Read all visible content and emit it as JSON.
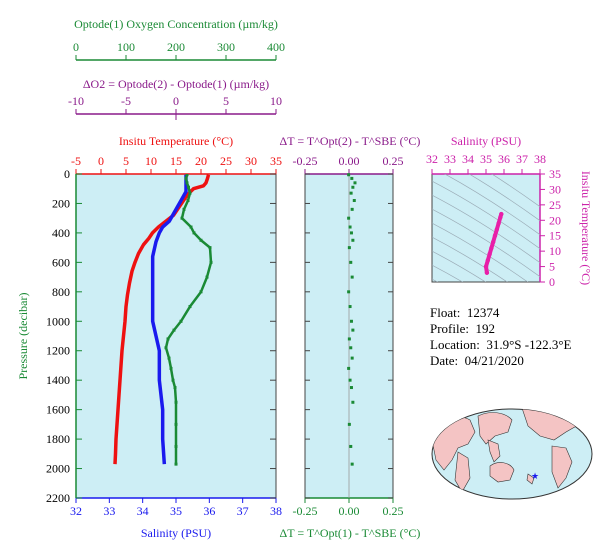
{
  "colors": {
    "oxygen": "#1a8a35",
    "delta_o2": "#8a1a8a",
    "temperature": "#ee1111",
    "salinity": "#1a1aee",
    "salinity_axis": "#cc22aa",
    "plot_bg": "#cdeef5",
    "pressure_axis": "#1a8a35"
  },
  "info": {
    "float_label": "Float:",
    "float_value": "12374",
    "profile_label": "Profile:",
    "profile_value": "192",
    "location_label": "Location:",
    "location_value": "31.9°S  -122.3°E",
    "date_label": "Date:",
    "date_value": "04/21/2020"
  },
  "map": {
    "icon": "world-map-icon",
    "marker_icon": "star-icon"
  },
  "chart_data": [
    {
      "type": "line",
      "name_key": "main_profile",
      "title_oxygen": "Optode(1) Oxygen Concentration (µm/kg)",
      "title_delta_o2": "ΔO2 = Optode(2) - Optode(1)   (µm/kg)",
      "title_temperature": "Insitu Temperature (°C)",
      "xlabel_salinity": "Salinity (PSU)",
      "ylabel": "Pressure (decibar)",
      "ylim": [
        0,
        2200
      ],
      "yticks": [
        0,
        200,
        400,
        600,
        800,
        1000,
        1200,
        1400,
        1600,
        1800,
        2000,
        2200
      ],
      "axes": {
        "oxygen": {
          "lim": [
            0,
            400
          ],
          "ticks": [
            0,
            100,
            200,
            300,
            400
          ]
        },
        "delta_o2": {
          "lim": [
            -10,
            10
          ],
          "ticks": [
            -10,
            -5,
            0,
            5,
            10
          ]
        },
        "temperature": {
          "lim": [
            -5,
            35
          ],
          "ticks": [
            -5,
            0,
            5,
            10,
            15,
            20,
            25,
            30,
            35
          ]
        },
        "salinity": {
          "lim": [
            32,
            38
          ],
          "ticks": [
            32,
            33,
            34,
            35,
            36,
            37,
            38
          ]
        }
      },
      "series": [
        {
          "name": "Temperature",
          "axis": "temperature",
          "points": [
            [
              21.5,
              5
            ],
            [
              21.3,
              30
            ],
            [
              21.0,
              60
            ],
            [
              20.5,
              80
            ],
            [
              18.5,
              100
            ],
            [
              17.3,
              140
            ],
            [
              16.5,
              180
            ],
            [
              15.5,
              230
            ],
            [
              14.5,
              280
            ],
            [
              13.0,
              320
            ],
            [
              11.5,
              360
            ],
            [
              10.3,
              400
            ],
            [
              9.5,
              440
            ],
            [
              8.5,
              480
            ],
            [
              7.5,
              540
            ],
            [
              6.8,
              600
            ],
            [
              6.2,
              660
            ],
            [
              5.7,
              740
            ],
            [
              5.3,
              820
            ],
            [
              5.0,
              900
            ],
            [
              4.8,
              1000
            ],
            [
              4.5,
              1100
            ],
            [
              4.2,
              1200
            ],
            [
              4.0,
              1300
            ],
            [
              3.8,
              1400
            ],
            [
              3.6,
              1500
            ],
            [
              3.4,
              1600
            ],
            [
              3.2,
              1700
            ],
            [
              3.0,
              1800
            ],
            [
              2.9,
              1900
            ],
            [
              2.8,
              1970
            ]
          ]
        },
        {
          "name": "Salinity",
          "axis": "salinity",
          "points": [
            [
              35.3,
              5
            ],
            [
              35.3,
              40
            ],
            [
              35.3,
              80
            ],
            [
              35.3,
              120
            ],
            [
              35.2,
              160
            ],
            [
              35.1,
              200
            ],
            [
              35.0,
              240
            ],
            [
              34.9,
              280
            ],
            [
              34.8,
              320
            ],
            [
              34.6,
              360
            ],
            [
              34.5,
              400
            ],
            [
              34.4,
              460
            ],
            [
              34.3,
              560
            ],
            [
              34.3,
              700
            ],
            [
              34.3,
              850
            ],
            [
              34.3,
              1000
            ],
            [
              34.4,
              1100
            ],
            [
              34.5,
              1200
            ],
            [
              34.5,
              1300
            ],
            [
              34.5,
              1400
            ],
            [
              34.6,
              1600
            ],
            [
              34.6,
              1800
            ],
            [
              34.65,
              1970
            ]
          ]
        },
        {
          "name": "Oxygen",
          "axis": "oxygen",
          "points": [
            [
              222,
              5
            ],
            [
              220,
              30
            ],
            [
              222,
              60
            ],
            [
              225,
              90
            ],
            [
              228,
              130
            ],
            [
              224,
              180
            ],
            [
              216,
              240
            ],
            [
              212,
              300
            ],
            [
              230,
              360
            ],
            [
              236,
              400
            ],
            [
              250,
              450
            ],
            [
              268,
              500
            ],
            [
              270,
              600
            ],
            [
              262,
              700
            ],
            [
              250,
              800
            ],
            [
              228,
              900
            ],
            [
              210,
              1000
            ],
            [
              196,
              1060
            ],
            [
              184,
              1120
            ],
            [
              180,
              1180
            ],
            [
              186,
              1250
            ],
            [
              190,
              1320
            ],
            [
              194,
              1400
            ],
            [
              198,
              1450
            ],
            [
              200,
              1550
            ],
            [
              200,
              1700
            ],
            [
              200,
              1850
            ],
            [
              200,
              1970
            ]
          ]
        }
      ]
    },
    {
      "type": "scatter",
      "title": "ΔT = T^Opt(2) - T^SBE (°C)",
      "xlabel": "ΔT = T^Opt(1) - T^SBE (°C)",
      "xlim": [
        -0.25,
        0.25
      ],
      "xticks": [
        "-0.25",
        "0.00",
        "0.25"
      ],
      "ylim": [
        0,
        2200
      ]
    },
    {
      "type": "line",
      "title": "Salinity (PSU)",
      "ylabel": "Insitu Temperature (°C)",
      "xlim": [
        32,
        38
      ],
      "ylim": [
        0,
        35
      ],
      "xticks": [
        32,
        33,
        34,
        35,
        36,
        37,
        38
      ],
      "yticks": [
        0,
        5,
        10,
        15,
        20,
        25,
        30,
        35
      ],
      "series": [
        {
          "name": "T-S",
          "points": [
            [
              35.05,
              3
            ],
            [
              35.0,
              5
            ],
            [
              35.1,
              7
            ],
            [
              35.2,
              9
            ],
            [
              35.3,
              11
            ],
            [
              35.4,
              13
            ],
            [
              35.5,
              15
            ],
            [
              35.6,
              17
            ],
            [
              35.7,
              19
            ],
            [
              35.8,
              21
            ],
            [
              35.85,
              22
            ]
          ]
        }
      ]
    }
  ]
}
